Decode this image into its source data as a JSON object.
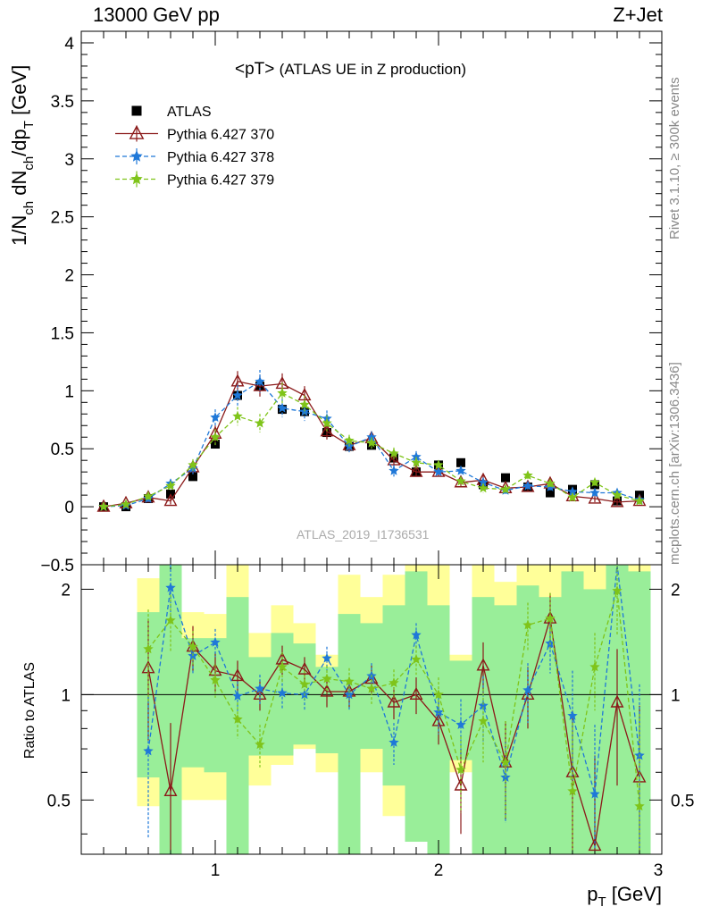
{
  "header": {
    "left": "13000 GeV pp",
    "right": "Z+Jet"
  },
  "title": {
    "main": "<pT>",
    "sub": "(ATLAS UE in Z production)"
  },
  "analysis_id": "ATLAS_2019_I1736531",
  "side_labels": {
    "rivet": "Rivet 3.1.10, ≥ 300k events",
    "mcplots": "mcplots.cern.ch [arXiv:1306.3436]"
  },
  "axes": {
    "main_ylabel": "1/N_ch dN_ch/dp_T [GeV]",
    "ratio_ylabel": "Ratio to ATLAS",
    "xlabel": "p_T [GeV]"
  },
  "colors": {
    "atlas": "#000000",
    "py370": "#8b1a1a",
    "py378": "#1f78d8",
    "py379": "#7fc41a",
    "band_yellow": "#ffff99",
    "band_green": "#99ee99"
  },
  "chart_data": {
    "type": "scatter",
    "xlabel": "p_T [GeV]",
    "ylabel": "1/N_ch dN_ch/dp_T [GeV]",
    "xlim": [
      0.4,
      3.0
    ],
    "ylim": [
      -0.5,
      4.1
    ],
    "ratio_ylabel": "Ratio to ATLAS",
    "ratio_ylim": [
      0.35,
      2.35
    ],
    "ratio_log": true,
    "x_ticks": [
      "1",
      "2",
      "3"
    ],
    "y_ticks": [
      "−0.5",
      "0",
      "0.5",
      "1",
      "1.5",
      "2",
      "2.5",
      "3",
      "3.5",
      "4"
    ],
    "ratio_ticks": [
      "0.5",
      "1",
      "2"
    ],
    "legend_position": "top-left",
    "x": [
      0.5,
      0.6,
      0.7,
      0.8,
      0.9,
      1.0,
      1.1,
      1.2,
      1.3,
      1.4,
      1.5,
      1.6,
      1.7,
      1.8,
      1.9,
      2.0,
      2.1,
      2.2,
      2.3,
      2.4,
      2.5,
      2.6,
      2.7,
      2.8,
      2.9
    ],
    "series": [
      {
        "name": "ATLAS",
        "marker": "square",
        "values": [
          0.0,
          0.0,
          0.07,
          0.11,
          0.26,
          0.54,
          0.96,
          1.04,
          0.84,
          0.82,
          0.64,
          0.52,
          0.53,
          0.42,
          0.3,
          0.36,
          0.38,
          0.19,
          0.25,
          0.17,
          0.12,
          0.15,
          0.19,
          0.05,
          0.1
        ]
      },
      {
        "name": "Pythia 6.427 370",
        "marker": "triangle",
        "line": "solid",
        "values": [
          0.0,
          0.03,
          0.08,
          0.05,
          0.34,
          0.63,
          1.08,
          1.04,
          1.06,
          0.96,
          0.65,
          0.53,
          0.59,
          0.4,
          0.3,
          0.3,
          0.21,
          0.23,
          0.16,
          0.17,
          0.2,
          0.09,
          0.07,
          0.04,
          0.05
        ],
        "errors": [
          0.01,
          0.02,
          0.03,
          0.03,
          0.05,
          0.07,
          0.09,
          0.09,
          0.09,
          0.08,
          0.07,
          0.05,
          0.05,
          0.05,
          0.04,
          0.04,
          0.04,
          0.04,
          0.03,
          0.03,
          0.04,
          0.03,
          0.03,
          0.03,
          0.03
        ]
      },
      {
        "name": "Pythia 6.427 378",
        "marker": "star",
        "line": "dashed",
        "values": [
          0.0,
          0.01,
          0.07,
          0.2,
          0.33,
          0.77,
          0.96,
          1.08,
          0.85,
          0.82,
          0.76,
          0.52,
          0.6,
          0.31,
          0.43,
          0.3,
          0.31,
          0.21,
          0.14,
          0.18,
          0.17,
          0.13,
          0.12,
          0.12,
          0.06
        ],
        "errors": [
          0.01,
          0.02,
          0.03,
          0.04,
          0.05,
          0.07,
          0.09,
          0.1,
          0.08,
          0.08,
          0.07,
          0.05,
          0.05,
          0.05,
          0.05,
          0.04,
          0.04,
          0.04,
          0.03,
          0.03,
          0.03,
          0.03,
          0.03,
          0.03,
          0.03
        ]
      },
      {
        "name": "Pythia 6.427 379",
        "marker": "star",
        "line": "dashed",
        "values": [
          0.0,
          0.02,
          0.09,
          0.18,
          0.36,
          0.6,
          0.78,
          0.72,
          0.98,
          0.88,
          0.72,
          0.57,
          0.55,
          0.46,
          0.38,
          0.36,
          0.22,
          0.16,
          0.15,
          0.27,
          0.2,
          0.08,
          0.21,
          0.1,
          0.05
        ],
        "errors": [
          0.01,
          0.02,
          0.03,
          0.04,
          0.05,
          0.07,
          0.08,
          0.08,
          0.09,
          0.08,
          0.07,
          0.05,
          0.05,
          0.05,
          0.05,
          0.04,
          0.04,
          0.04,
          0.03,
          0.03,
          0.03,
          0.03,
          0.03,
          0.03,
          0.03
        ]
      }
    ],
    "ratio_series": [
      {
        "name": "Pythia 6.427 370",
        "values": [
          null,
          null,
          1.19,
          0.53,
          1.37,
          1.17,
          1.13,
          1.0,
          1.26,
          1.18,
          1.02,
          1.02,
          1.11,
          0.95,
          1.0,
          0.84,
          0.55,
          1.21,
          0.64,
          1.0,
          1.65,
          0.6,
          0.37,
          0.95,
          0.58
        ],
        "errors": [
          0,
          0,
          0.45,
          0.3,
          0.2,
          0.15,
          0.12,
          0.1,
          0.12,
          0.1,
          0.1,
          0.1,
          0.1,
          0.1,
          0.12,
          0.12,
          0.15,
          0.2,
          0.2,
          0.2,
          0.3,
          0.3,
          0.3,
          0.4,
          0.35
        ]
      },
      {
        "name": "Pythia 6.427 378",
        "values": [
          null,
          null,
          0.69,
          2.02,
          1.29,
          1.41,
          0.99,
          1.04,
          1.01,
          1.0,
          1.27,
          1.0,
          1.13,
          0.73,
          1.48,
          0.89,
          0.82,
          0.93,
          0.58,
          1.03,
          1.4,
          0.87,
          0.52,
          2.43,
          0.67
        ],
        "errors": [
          0,
          0,
          0.3,
          0.4,
          0.15,
          0.13,
          0.1,
          0.1,
          0.1,
          0.1,
          0.1,
          0.1,
          0.1,
          0.1,
          0.12,
          0.12,
          0.15,
          0.2,
          0.15,
          0.2,
          0.25,
          0.3,
          0.3,
          0.5,
          0.4
        ]
      },
      {
        "name": "Pythia 6.427 379",
        "values": [
          null,
          null,
          1.35,
          1.63,
          1.37,
          1.1,
          0.85,
          0.72,
          1.2,
          1.07,
          1.11,
          1.09,
          1.04,
          1.08,
          1.26,
          1.0,
          0.61,
          0.84,
          0.64,
          1.58,
          1.65,
          0.53,
          1.2,
          1.98,
          0.48
        ],
        "errors": [
          0,
          0,
          0.4,
          0.3,
          0.15,
          0.12,
          0.1,
          0.1,
          0.12,
          0.1,
          0.1,
          0.1,
          0.1,
          0.1,
          0.12,
          0.12,
          0.15,
          0.2,
          0.2,
          0.25,
          0.3,
          0.3,
          0.3,
          0.5,
          0.4
        ]
      }
    ],
    "uncertainty_bands": [
      {
        "x": [
          0.65,
          0.75
        ],
        "yellow": [
          0.48,
          2.15
        ],
        "green": [
          0.58,
          1.72
        ]
      },
      {
        "x": [
          0.75,
          0.85
        ],
        "yellow": [
          0.35,
          2.35
        ],
        "green": [
          0.35,
          2.35
        ]
      },
      {
        "x": [
          0.85,
          0.95
        ],
        "yellow": [
          0.5,
          1.72
        ],
        "green": [
          0.62,
          1.45
        ]
      },
      {
        "x": [
          0.95,
          1.05
        ],
        "yellow": [
          0.5,
          1.7
        ],
        "green": [
          0.6,
          1.45
        ]
      },
      {
        "x": [
          1.05,
          1.15
        ],
        "yellow": [
          0.43,
          2.35
        ],
        "green": [
          0.35,
          1.9
        ]
      },
      {
        "x": [
          1.15,
          1.25
        ],
        "yellow": [
          0.55,
          1.5
        ],
        "green": [
          0.67,
          1.28
        ]
      },
      {
        "x": [
          1.25,
          1.35
        ],
        "yellow": [
          0.63,
          1.8
        ],
        "green": [
          0.67,
          1.5
        ]
      },
      {
        "x": [
          1.35,
          1.45
        ],
        "yellow": [
          0.7,
          1.6
        ],
        "green": [
          0.72,
          1.4
        ]
      },
      {
        "x": [
          1.45,
          1.55
        ],
        "yellow": [
          0.6,
          1.3
        ],
        "green": [
          0.68,
          1.2
        ]
      },
      {
        "x": [
          1.55,
          1.65
        ],
        "yellow": [
          0.43,
          2.2
        ],
        "green": [
          0.35,
          1.7
        ]
      },
      {
        "x": [
          1.65,
          1.75
        ],
        "yellow": [
          0.6,
          1.9
        ],
        "green": [
          0.7,
          1.6
        ]
      },
      {
        "x": [
          1.75,
          1.85
        ],
        "yellow": [
          0.45,
          2.2
        ],
        "green": [
          0.55,
          1.8
        ]
      },
      {
        "x": [
          1.85,
          1.95
        ],
        "yellow": [
          0.4,
          2.35
        ],
        "green": [
          0.38,
          2.25
        ]
      },
      {
        "x": [
          1.95,
          2.05
        ],
        "yellow": [
          0.35,
          2.35
        ],
        "green": [
          0.35,
          1.8
        ]
      },
      {
        "x": [
          2.05,
          2.15
        ],
        "yellow": [
          0.6,
          1.3
        ],
        "green": [
          0.65,
          1.25
        ]
      },
      {
        "x": [
          2.15,
          2.25
        ],
        "yellow": [
          0.35,
          2.35
        ],
        "green": [
          0.35,
          1.9
        ]
      },
      {
        "x": [
          2.25,
          2.35
        ],
        "yellow": [
          0.4,
          2.1
        ],
        "green": [
          0.35,
          1.8
        ]
      },
      {
        "x": [
          2.35,
          2.45
        ],
        "yellow": [
          0.35,
          2.35
        ],
        "green": [
          0.35,
          2.05
        ]
      },
      {
        "x": [
          2.45,
          2.55
        ],
        "yellow": [
          0.35,
          2.35
        ],
        "green": [
          0.35,
          1.9
        ]
      },
      {
        "x": [
          2.55,
          2.65
        ],
        "yellow": [
          0.35,
          2.35
        ],
        "green": [
          0.35,
          2.25
        ]
      },
      {
        "x": [
          2.65,
          2.75
        ],
        "yellow": [
          0.35,
          2.35
        ],
        "green": [
          0.35,
          2.0
        ]
      },
      {
        "x": [
          2.75,
          2.85
        ],
        "yellow": [
          0.35,
          2.35
        ],
        "green": [
          0.35,
          2.35
        ]
      },
      {
        "x": [
          2.85,
          2.95
        ],
        "yellow": [
          0.35,
          2.35
        ],
        "green": [
          0.35,
          2.25
        ]
      }
    ]
  }
}
